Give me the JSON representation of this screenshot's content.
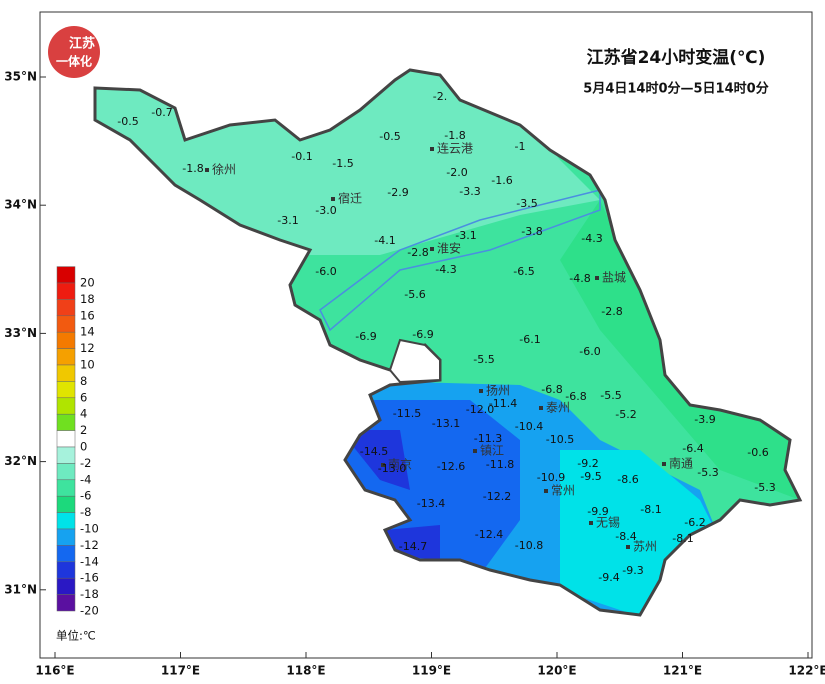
{
  "map": {
    "title": "江苏省24小时变温(℃)",
    "subtitle": "5月4日14时0分—5日14时0分",
    "logo": {
      "line1": "江苏",
      "line2": "一体化"
    },
    "xticks": [
      {
        "value": 116,
        "label": "116°E"
      },
      {
        "value": 117,
        "label": "117°E"
      },
      {
        "value": 118,
        "label": "118°E"
      },
      {
        "value": 119,
        "label": "119°E"
      },
      {
        "value": 120,
        "label": "120°E"
      },
      {
        "value": 121,
        "label": "121°E"
      },
      {
        "value": 122,
        "label": "122°E"
      }
    ],
    "yticks": [
      {
        "value": 31,
        "label": "31°N"
      },
      {
        "value": 32,
        "label": "32°N"
      },
      {
        "value": 33,
        "label": "33°N"
      },
      {
        "value": 34,
        "label": "34°N"
      },
      {
        "value": 35,
        "label": "35°N"
      }
    ],
    "legend": {
      "levels": [
        20,
        18,
        16,
        14,
        12,
        10,
        8,
        6,
        4,
        2,
        0,
        -2,
        -4,
        -6,
        -8,
        -10,
        -12,
        -14,
        -16,
        -18,
        -20
      ],
      "colors": [
        "#d80000",
        "#ee1c10",
        "#f04018",
        "#f25a10",
        "#f47a00",
        "#f5a000",
        "#f0c800",
        "#e0e400",
        "#b0e400",
        "#70e020",
        "#ffffff",
        "#a6f2dc",
        "#6eeac0",
        "#3ee39e",
        "#1cd97c",
        "#00e2e8",
        "#16a2f0",
        "#1468f0",
        "#1e36dc",
        "#2a18c4",
        "#5a10a0"
      ],
      "unit": "单位:℃"
    },
    "cities": [
      "徐州",
      "连云港",
      "宿迁",
      "淮安",
      "盐城",
      "扬州",
      "泰州",
      "镇江",
      "南京",
      "常州",
      "无锡",
      "苏州",
      "南通"
    ],
    "stations": [
      -0.5,
      -0.7,
      {
        "value": -2,
        "label": "-2."
      },
      -0.5,
      -1.8,
      -1,
      -0.1,
      -1.5,
      -1.8,
      {
        "value": -2,
        "label": "-2.0"
      },
      -1.6,
      -2.9,
      -3.3,
      {
        "value": -3,
        "label": "-3.0"
      },
      -3.1,
      -3.5,
      -3.8,
      -4.3,
      -4.1,
      -3.1,
      -2.8,
      -4.3,
      {
        "value": -6,
        "label": "-6.0"
      },
      -6.5,
      -4.8,
      -5.6,
      -2.8,
      -6.9,
      -6.9,
      -6.1,
      {
        "value": -6,
        "label": "-6.0"
      },
      -5.5,
      -6.8,
      -6.8,
      -5.5,
      -11.5,
      {
        "value": -12,
        "label": "-12.0"
      },
      -11.4,
      -13.1,
      -5.2,
      -3.9,
      -10.4,
      -11.3,
      -10.5,
      -14.5,
      -6.4,
      -0.6,
      {
        "value": -13,
        "label": "-13.0"
      },
      -12.6,
      -11.8,
      -9.2,
      -9.5,
      -10.9,
      -8.6,
      -5.3,
      -5.3,
      -13.4,
      -12.2,
      -9.9,
      -8.1,
      -6.2,
      -8.4,
      -8.1,
      -12.4,
      -10.8,
      -14.7,
      -9.3,
      -9.4
    ]
  }
}
